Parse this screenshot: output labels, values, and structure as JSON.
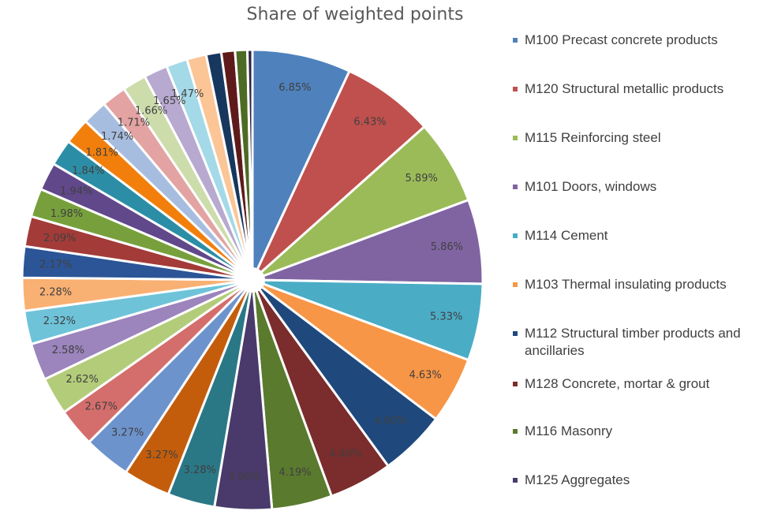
{
  "chart_data": {
    "type": "pie",
    "title": "Share of weighted points",
    "legend_position": "right",
    "slices": [
      {
        "name": "M100 Precast concrete products",
        "value": 6.85,
        "label": "6.85%",
        "color": "#4f81bd"
      },
      {
        "name": "M120 Structural metallic products",
        "value": 6.43,
        "label": "6.43%",
        "color": "#c0504d"
      },
      {
        "name": "M115 Reinforcing steel",
        "value": 5.89,
        "label": "5.89%",
        "color": "#9bbb59"
      },
      {
        "name": "M101 Doors, windows",
        "value": 5.86,
        "label": "5.86%",
        "color": "#8064a2"
      },
      {
        "name": "M114 Cement",
        "value": 5.33,
        "label": "5.33%",
        "color": "#4bacc6"
      },
      {
        "name": "M103 Thermal insulating products",
        "value": 4.63,
        "label": "4.63%",
        "color": "#f79646"
      },
      {
        "name": "M112 Structural timber products and ancillaries",
        "value": 4.6,
        "label": "4.60%",
        "color": "#1f497d"
      },
      {
        "name": "M128 Concrete, mortar & grout",
        "value": 4.4,
        "label": "4.40%",
        "color": "#7b2c2c"
      },
      {
        "name": "M116 Masonry",
        "value": 4.19,
        "label": "4.19%",
        "color": "#5a7a2e"
      },
      {
        "name": "M125 Aggregates",
        "value": 3.96,
        "label": "3.96%",
        "color": "#4a3a6b"
      },
      {
        "name": "",
        "value": 3.28,
        "label": "3.28%",
        "color": "#2a7886"
      },
      {
        "name": "",
        "value": 3.27,
        "label": "3.27%",
        "color": "#c45d0b"
      },
      {
        "name": "",
        "value": 3.27,
        "label": "3.27%",
        "color": "#6d93cc"
      },
      {
        "name": "",
        "value": 2.67,
        "label": "2.67%",
        "color": "#d46e6c"
      },
      {
        "name": "",
        "value": 2.62,
        "label": "2.62%",
        "color": "#b3cc7a"
      },
      {
        "name": "",
        "value": 2.58,
        "label": "2.58%",
        "color": "#9c84bd"
      },
      {
        "name": "",
        "value": 2.32,
        "label": "2.32%",
        "color": "#6ec3d9"
      },
      {
        "name": "",
        "value": 2.28,
        "label": "2.28%",
        "color": "#f9b073"
      },
      {
        "name": "",
        "value": 2.17,
        "label": "2.17%",
        "color": "#2c5597"
      },
      {
        "name": "",
        "value": 2.09,
        "label": "2.09%",
        "color": "#a33b38"
      },
      {
        "name": "",
        "value": 1.98,
        "label": "1.98%",
        "color": "#77a03c"
      },
      {
        "name": "",
        "value": 1.94,
        "label": "1.94%",
        "color": "#60488a"
      },
      {
        "name": "",
        "value": 1.84,
        "label": "1.84%",
        "color": "#2c8ea6"
      },
      {
        "name": "",
        "value": 1.81,
        "label": "1.81%",
        "color": "#f27f0c"
      },
      {
        "name": "",
        "value": 1.74,
        "label": "1.74%",
        "color": "#a7bde0"
      },
      {
        "name": "",
        "value": 1.71,
        "label": "1.71%",
        "color": "#e3a3a2"
      },
      {
        "name": "",
        "value": 1.66,
        "label": "1.66%",
        "color": "#cddcab"
      },
      {
        "name": "",
        "value": 1.65,
        "label": "1.65%",
        "color": "#b8a9d0"
      },
      {
        "name": "",
        "value": 1.47,
        "label": "1.47%",
        "color": "#a4d9e8"
      },
      {
        "name": "",
        "value": 1.35,
        "label": "",
        "color": "#fbc596"
      },
      {
        "name": "",
        "value": 1.05,
        "label": "",
        "color": "#17375e"
      },
      {
        "name": "",
        "value": 0.95,
        "label": "",
        "color": "#5e1a1a"
      },
      {
        "name": "",
        "value": 0.85,
        "label": "",
        "color": "#4e6b25"
      },
      {
        "name": "",
        "value": 0.35,
        "label": "",
        "color": "#2b2140"
      }
    ]
  }
}
